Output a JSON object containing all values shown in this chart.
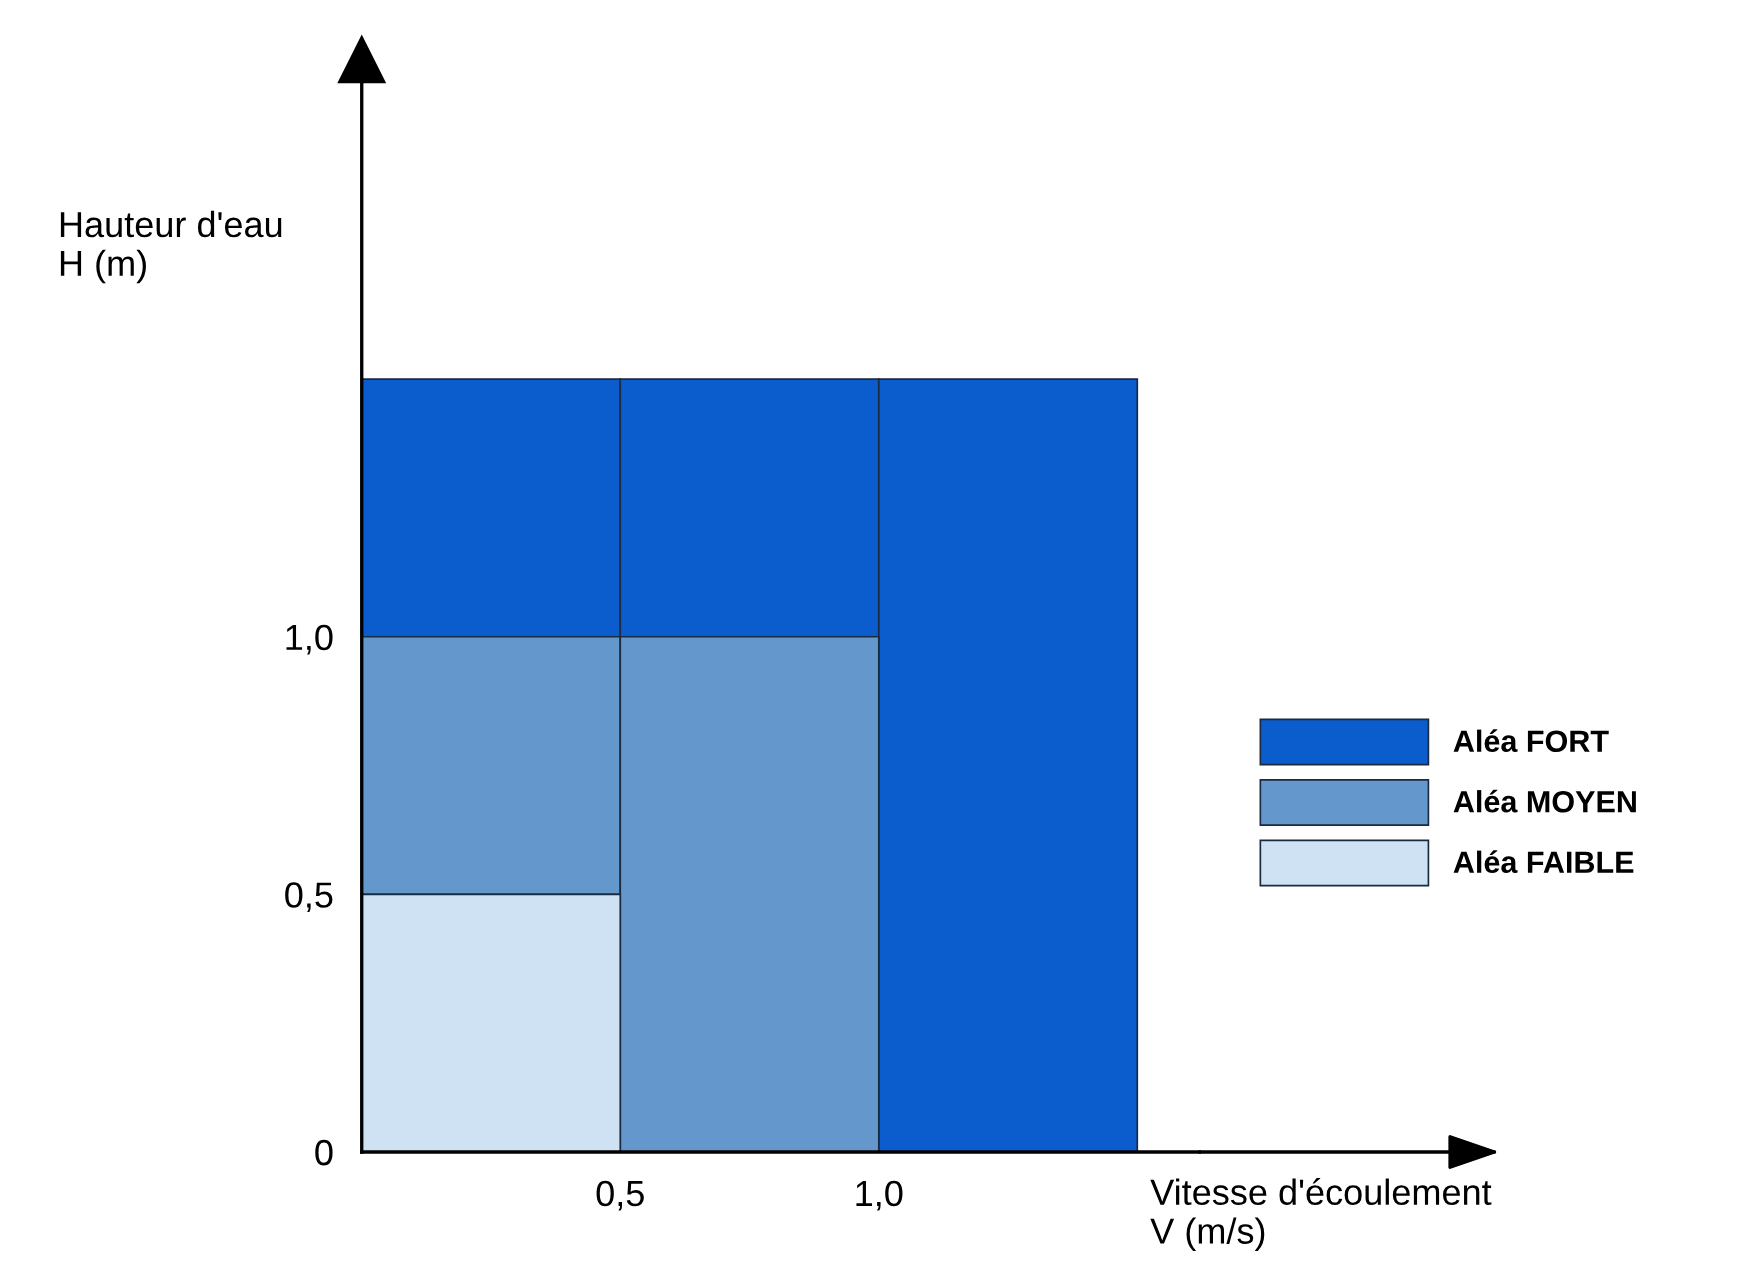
{
  "chart_data": {
    "type": "bar",
    "xlabel": "Vitesse d'écoulement\nV (m/s)",
    "ylabel": "Hauteur d'eau\nH (m)",
    "series": [
      {
        "name": "Aléa FORT",
        "color": "#0b5ccd",
        "x": [
          0.25,
          0.75,
          1.25
        ],
        "base": [
          1.0,
          1.0,
          0
        ],
        "values": [
          0.5,
          0.5,
          1.5
        ]
      },
      {
        "name": "Aléa MOYEN",
        "color": "#6497cc",
        "x": [
          0.25,
          0.75
        ],
        "base": [
          0.5,
          0
        ],
        "values": [
          0.5,
          1.0
        ]
      },
      {
        "name": "Aléa FAIBLE",
        "color": "#cfe2f3",
        "x": [
          0.25
        ],
        "base": [
          0
        ],
        "values": [
          0.5
        ]
      }
    ],
    "xlim": [
      0,
      1.62
    ],
    "ylim": [
      0,
      2.12
    ],
    "xticks": [
      {
        "value": 0.5,
        "label": "0,5"
      },
      {
        "value": 1.0,
        "label": "1,0"
      }
    ],
    "yticks": [
      0,
      {
        "value": 0.5,
        "label": "0,5"
      },
      {
        "value": 1.0,
        "label": "1,0"
      }
    ],
    "legend": "right"
  }
}
